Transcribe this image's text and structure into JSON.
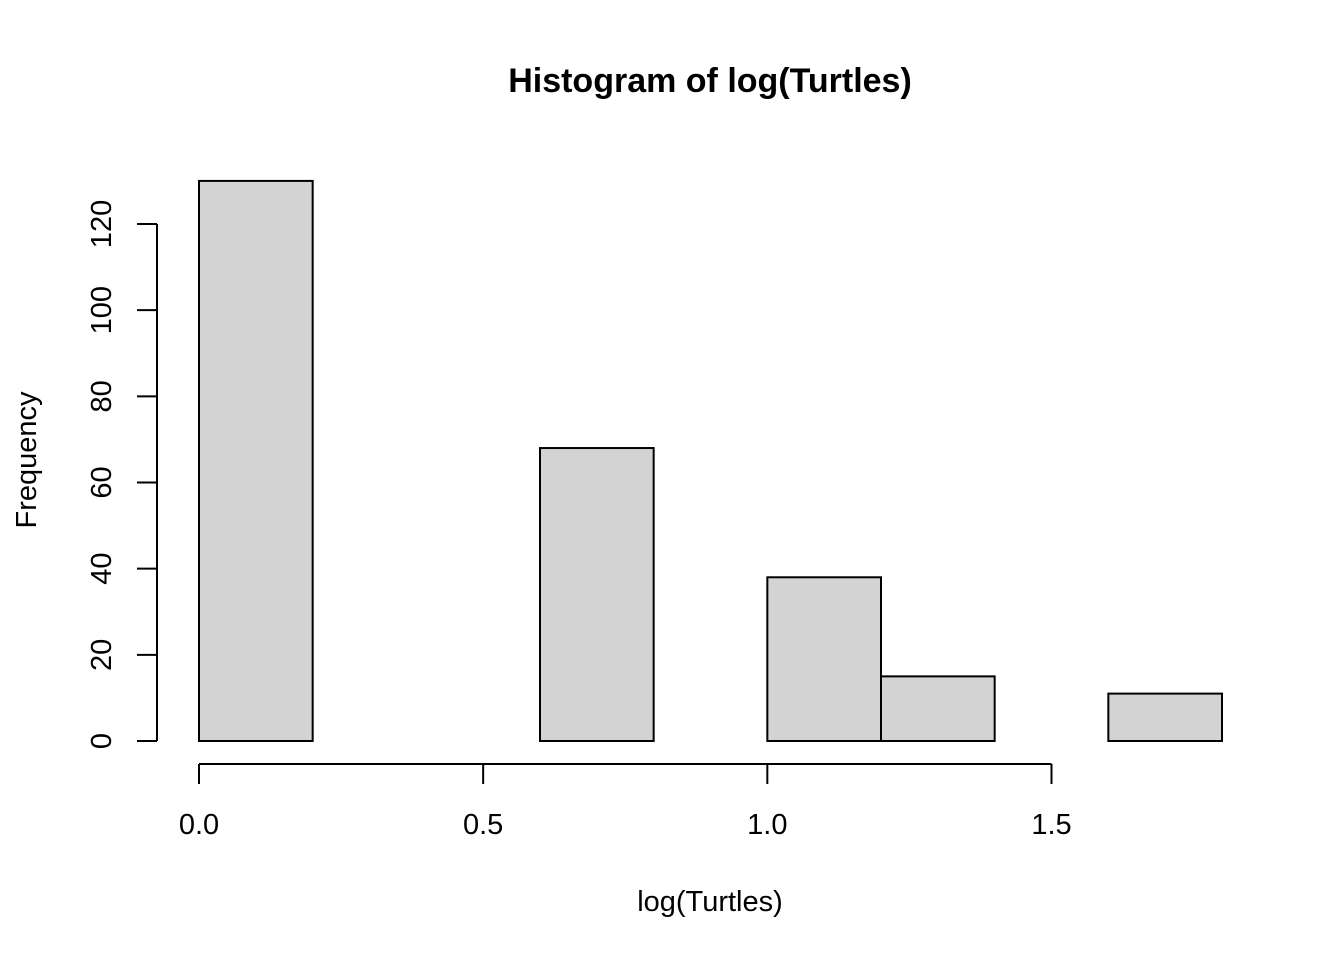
{
  "chart_data": {
    "type": "bar",
    "title": "Histogram of log(Turtles)",
    "xlabel": "log(Turtles)",
    "ylabel": "Frequency",
    "bins": [
      {
        "x0": 0.0,
        "x1": 0.2,
        "count": 130
      },
      {
        "x0": 0.2,
        "x1": 0.4,
        "count": 0
      },
      {
        "x0": 0.4,
        "x1": 0.6,
        "count": 0
      },
      {
        "x0": 0.6,
        "x1": 0.8,
        "count": 68
      },
      {
        "x0": 0.8,
        "x1": 1.0,
        "count": 0
      },
      {
        "x0": 1.0,
        "x1": 1.2,
        "count": 38
      },
      {
        "x0": 1.2,
        "x1": 1.4,
        "count": 15
      },
      {
        "x0": 1.4,
        "x1": 1.6,
        "count": 0
      },
      {
        "x0": 1.6,
        "x1": 1.8,
        "count": 11
      }
    ],
    "xticks": [
      0.0,
      0.5,
      1.0,
      1.5
    ],
    "xtick_labels": [
      "0.0",
      "0.5",
      "1.0",
      "1.5"
    ],
    "yticks": [
      0,
      20,
      40,
      60,
      80,
      100,
      120
    ],
    "ytick_labels": [
      "0",
      "20",
      "40",
      "60",
      "80",
      "100",
      "120"
    ],
    "xlim": [
      0,
      1.8
    ],
    "ylim": [
      0,
      130
    ],
    "grid": false,
    "legend": "none",
    "colors": {
      "bar_fill": "#d3d3d3",
      "bar_stroke": "#000000",
      "axis": "#000000",
      "background": "#ffffff"
    }
  }
}
